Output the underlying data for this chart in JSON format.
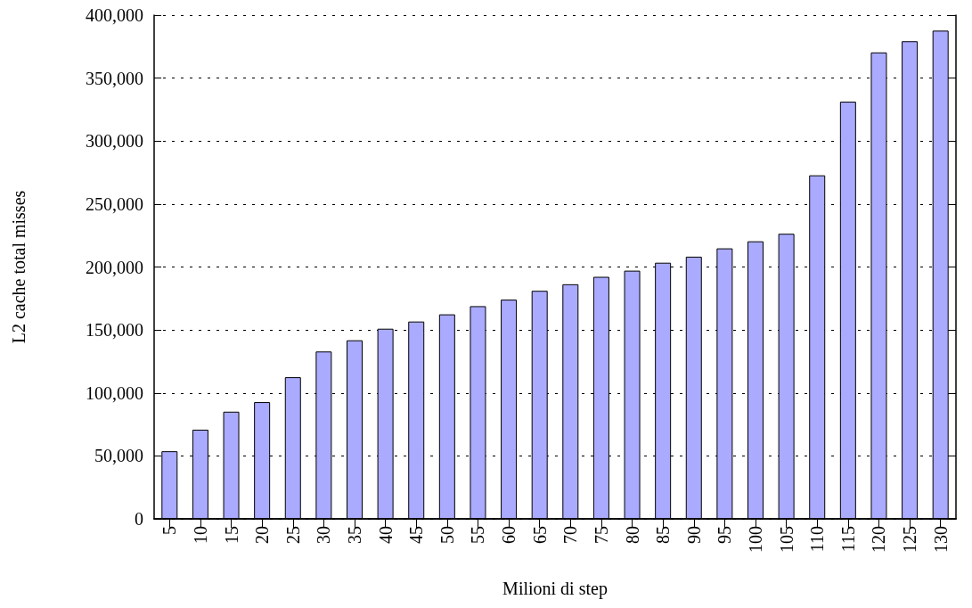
{
  "chart_data": {
    "type": "bar",
    "xlabel": "Milioni di step",
    "ylabel": "L2 cache total misses",
    "categories": [
      "5",
      "10",
      "15",
      "20",
      "25",
      "30",
      "35",
      "40",
      "45",
      "50",
      "55",
      "60",
      "65",
      "70",
      "75",
      "80",
      "85",
      "90",
      "95",
      "100",
      "105",
      "110",
      "115",
      "120",
      "125",
      "130"
    ],
    "values": [
      53700,
      70800,
      85100,
      92700,
      112500,
      132900,
      141800,
      151000,
      156700,
      162400,
      168900,
      174100,
      181100,
      186300,
      192200,
      197100,
      203400,
      208200,
      214800,
      220400,
      226400,
      272800,
      331300,
      370400,
      379300,
      387700
    ],
    "color": "#aaaaff",
    "ylim": [
      0,
      400000
    ],
    "yticks": [
      0,
      {
        "value": 50000,
        "label": "50,000"
      },
      {
        "value": 100000,
        "label": "100,000"
      },
      {
        "value": 150000,
        "label": "150,000"
      },
      {
        "value": 200000,
        "label": "200,000"
      },
      {
        "value": 250000,
        "label": "250,000"
      },
      {
        "value": 300000,
        "label": "300,000"
      },
      {
        "value": 350000,
        "label": "350,000"
      },
      {
        "value": 400000,
        "label": "400,000"
      }
    ],
    "grid": "y"
  }
}
